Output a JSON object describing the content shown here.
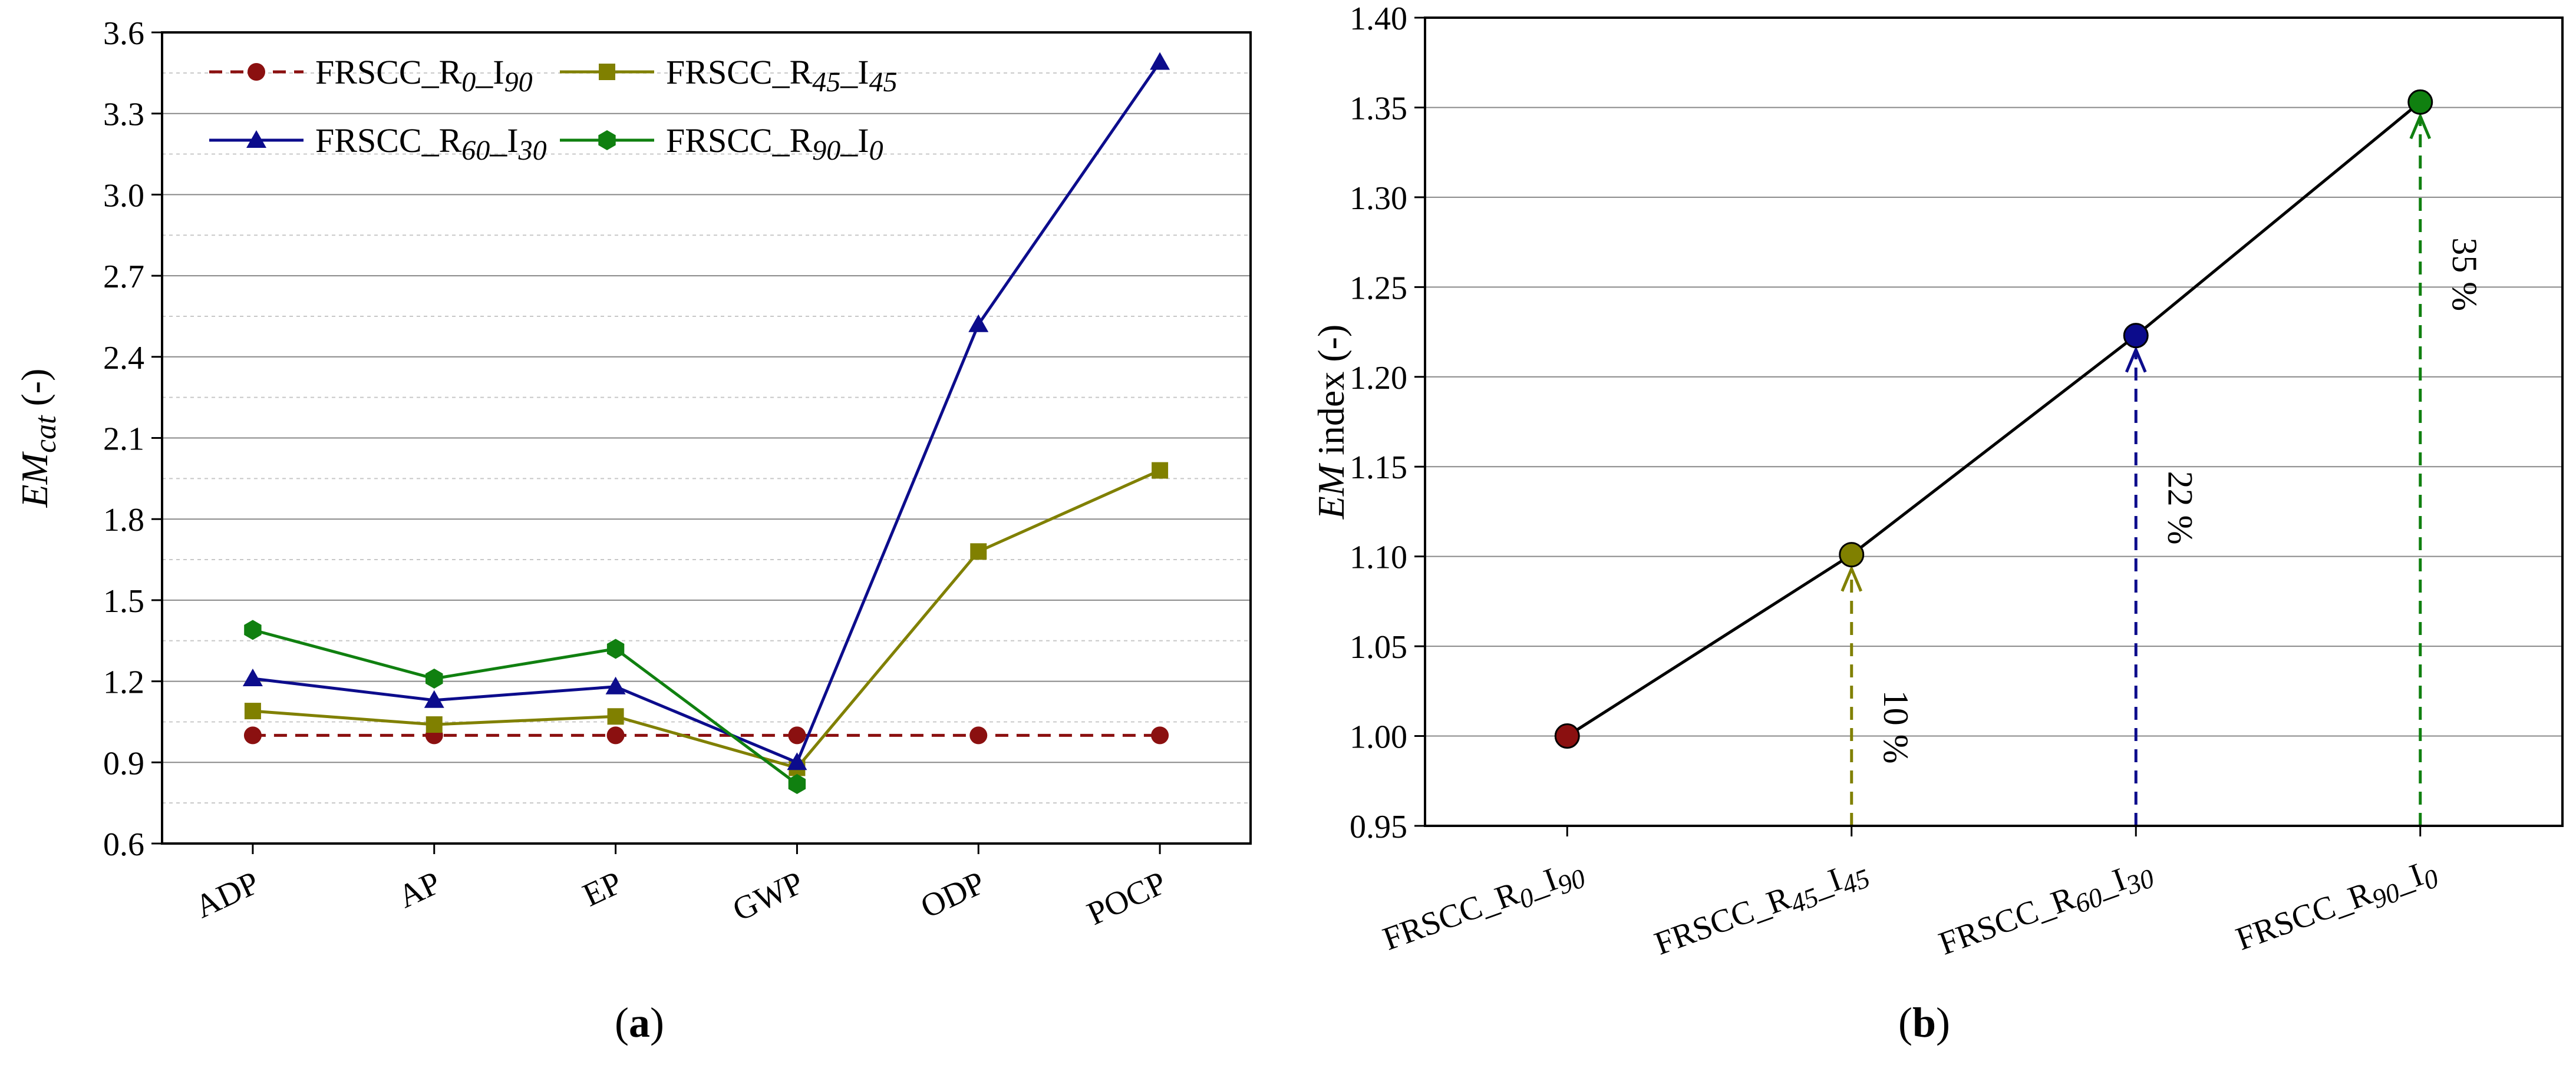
{
  "figure": {
    "panel_a_label": "a",
    "panel_b_label": "b"
  },
  "chart_data": [
    {
      "type": "line",
      "panel": "a",
      "title": "",
      "xlabel": "",
      "ylabel": {
        "main": "EM",
        "sub": "cat",
        "suffix": " (-)"
      },
      "categories": [
        "ADP",
        "AP",
        "EP",
        "GWP",
        "ODP",
        "POCP"
      ],
      "ylim": [
        0.6,
        3.6
      ],
      "yticks": [
        "0.6",
        "0.9",
        "1.2",
        "1.5",
        "1.8",
        "2.1",
        "2.4",
        "2.7",
        "3.0",
        "3.3",
        "3.6"
      ],
      "grid": true,
      "legend_position": "top-left",
      "series": [
        {
          "name": "FRSCC_R0_I90",
          "label_parts": [
            "FRSCC_R",
            "0",
            "_I",
            "90"
          ],
          "color": "#8b1010",
          "marker": "circle",
          "dashed": true,
          "values": [
            1.0,
            1.0,
            1.0,
            1.0,
            1.0,
            1.0
          ]
        },
        {
          "name": "FRSCC_R45_I45",
          "label_parts": [
            "FRSCC_R",
            "45",
            "_I",
            "45"
          ],
          "color": "#808000",
          "marker": "square",
          "dashed": false,
          "values": [
            1.09,
            1.04,
            1.07,
            0.88,
            1.68,
            1.98
          ]
        },
        {
          "name": "FRSCC_R60_I30",
          "label_parts": [
            "FRSCC_R",
            "60",
            "_I",
            "30"
          ],
          "color": "#0c0c8c",
          "marker": "triangle",
          "dashed": false,
          "values": [
            1.21,
            1.13,
            1.18,
            0.9,
            2.52,
            3.49
          ]
        },
        {
          "name": "FRSCC_R90_I0",
          "label_parts": [
            "FRSCC_R",
            "90",
            "_I",
            "0"
          ],
          "color": "#108010",
          "marker": "hexagon",
          "dashed": false,
          "values": [
            1.39,
            1.21,
            1.32,
            0.82,
            null,
            null
          ]
        }
      ]
    },
    {
      "type": "line",
      "panel": "b",
      "title": "",
      "xlabel": "",
      "ylabel": {
        "main": "EM",
        "suffix": " index (-)"
      },
      "categories": [
        {
          "parts": [
            "FRSCC_R",
            "0",
            "_I",
            "90"
          ]
        },
        {
          "parts": [
            "FRSCC_R",
            "45",
            "_I",
            "45"
          ]
        },
        {
          "parts": [
            "FRSCC_R",
            "60",
            "_I",
            "30"
          ]
        },
        {
          "parts": [
            "FRSCC_R",
            "90",
            "_I",
            "0"
          ]
        }
      ],
      "ylim": [
        0.95,
        1.4
      ],
      "yticks": [
        "0.95",
        "1.00",
        "1.05",
        "1.10",
        "1.15",
        "1.20",
        "1.25",
        "1.30",
        "1.35",
        "1.40"
      ],
      "grid": true,
      "values": [
        1.0,
        1.101,
        1.223,
        1.353
      ],
      "point_colors": [
        "#8b1010",
        "#808000",
        "#0c0c8c",
        "#108010"
      ],
      "annotations": [
        {
          "index": 1,
          "text": "10 %",
          "color": "#808000"
        },
        {
          "index": 2,
          "text": "22 %",
          "color": "#0c0c8c"
        },
        {
          "index": 3,
          "text": "35 %",
          "color": "#108010"
        }
      ]
    }
  ]
}
